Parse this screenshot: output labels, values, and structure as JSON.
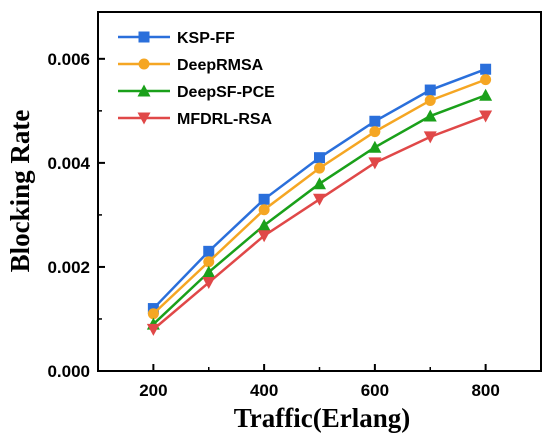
{
  "chart_data": {
    "type": "line",
    "xlabel": "Traffic(Erlang)",
    "ylabel": "Blocking Rate",
    "x": [
      200,
      300,
      400,
      500,
      600,
      700,
      800
    ],
    "xlim": [
      100,
      900
    ],
    "ylim": [
      0,
      0.0069
    ],
    "xticks": [
      200,
      400,
      600,
      800
    ],
    "xtick_labels": [
      "200",
      "400",
      "600",
      "800"
    ],
    "yticks": [
      0,
      0.002,
      0.004,
      0.006
    ],
    "ytick_labels": [
      "0.000",
      "0.002",
      "0.004",
      "0.006"
    ],
    "grid": false,
    "legend_position": "top-left",
    "series": [
      {
        "name": "KSP-FF",
        "color": "#2a6fdb",
        "marker": "square",
        "values": [
          0.0012,
          0.0023,
          0.0033,
          0.0041,
          0.0048,
          0.0054,
          0.0058
        ]
      },
      {
        "name": "DeepRMSA",
        "color": "#f5a623",
        "marker": "circle",
        "values": [
          0.0011,
          0.0021,
          0.0031,
          0.0039,
          0.0046,
          0.0052,
          0.0056
        ]
      },
      {
        "name": "DeepSF-PCE",
        "color": "#1aa01a",
        "marker": "triangle-up",
        "values": [
          0.0009,
          0.0019,
          0.0028,
          0.0036,
          0.0043,
          0.0049,
          0.0053
        ]
      },
      {
        "name": "MFDRL-RSA",
        "color": "#e04848",
        "marker": "triangle-down",
        "values": [
          0.0008,
          0.0017,
          0.0026,
          0.0033,
          0.004,
          0.0045,
          0.0049
        ]
      }
    ]
  }
}
